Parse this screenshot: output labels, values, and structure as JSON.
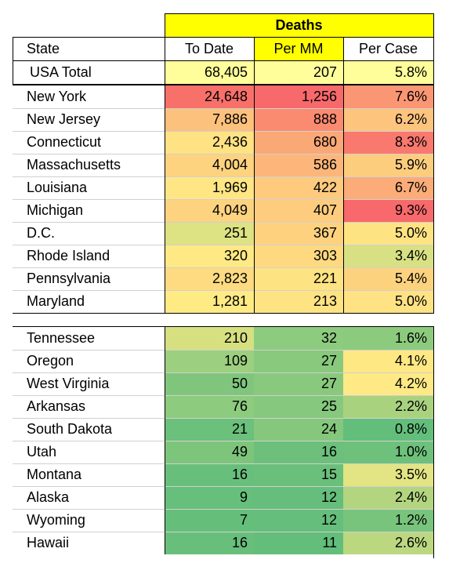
{
  "chart_data": {
    "type": "table",
    "group_header": "Deaths",
    "columns": [
      "State",
      "To Date",
      "Per MM",
      "Per Case"
    ],
    "total": {
      "state": "USA Total",
      "to_date": "68,405",
      "per_mm": "207",
      "per_case": "5.8%",
      "colors": [
        "#fffe9a",
        "#fffe9a",
        "#fffe9a"
      ]
    },
    "top_rows": [
      {
        "state": "New York",
        "to_date": "24,648",
        "per_mm": "1,256",
        "per_case": "7.6%",
        "colors": [
          "#f8706a",
          "#f8696b",
          "#fb9674"
        ]
      },
      {
        "state": "New Jersey",
        "to_date": "7,886",
        "per_mm": "888",
        "per_case": "6.2%",
        "colors": [
          "#fcc17c",
          "#fa8b71",
          "#fdc47d"
        ]
      },
      {
        "state": "Connecticut",
        "to_date": "2,436",
        "per_mm": "680",
        "per_case": "8.3%",
        "colors": [
          "#fee283",
          "#fba877",
          "#f9796e"
        ]
      },
      {
        "state": "Massachusetts",
        "to_date": "4,004",
        "per_mm": "586",
        "per_case": "5.9%",
        "colors": [
          "#fdd380",
          "#fcb67a",
          "#fdcd7e"
        ]
      },
      {
        "state": "Louisiana",
        "to_date": "1,969",
        "per_mm": "422",
        "per_case": "6.7%",
        "colors": [
          "#ffe684",
          "#fdca7e",
          "#fbac78"
        ]
      },
      {
        "state": "Michigan",
        "to_date": "4,049",
        "per_mm": "407",
        "per_case": "9.3%",
        "colors": [
          "#fdd380",
          "#fdcc7e",
          "#f8696b"
        ]
      },
      {
        "state": "D.C.",
        "to_date": "251",
        "per_mm": "367",
        "per_case": "5.0%",
        "colors": [
          "#dde283",
          "#fed17f",
          "#fee383"
        ]
      },
      {
        "state": "Rhode Island",
        "to_date": "320",
        "per_mm": "303",
        "per_case": "3.4%",
        "colors": [
          "#fee984",
          "#fed980",
          "#d7e082"
        ]
      },
      {
        "state": "Pennsylvania",
        "to_date": "2,823",
        "per_mm": "221",
        "per_case": "5.4%",
        "colors": [
          "#fedb81",
          "#fee383",
          "#fdd27f"
        ]
      },
      {
        "state": "Maryland",
        "to_date": "1,281",
        "per_mm": "213",
        "per_case": "5.0%",
        "colors": [
          "#feeb84",
          "#fee383",
          "#fee283"
        ]
      }
    ],
    "bottom_rows": [
      {
        "state": "Tennessee",
        "to_date": "210",
        "per_mm": "32",
        "per_case": "1.6%",
        "colors": [
          "#d6e081",
          "#8dcb7e",
          "#8ccb7e"
        ]
      },
      {
        "state": "Oregon",
        "to_date": "109",
        "per_mm": "27",
        "per_case": "4.1%",
        "colors": [
          "#9ccf7f",
          "#89c97d",
          "#fee884"
        ]
      },
      {
        "state": "West Virginia",
        "to_date": "50",
        "per_mm": "27",
        "per_case": "4.2%",
        "colors": [
          "#7fc67c",
          "#89c97d",
          "#fee984"
        ]
      },
      {
        "state": "Arkansas",
        "to_date": "76",
        "per_mm": "25",
        "per_case": "2.2%",
        "colors": [
          "#8dcb7e",
          "#86c87d",
          "#a9d27f"
        ]
      },
      {
        "state": "South Dakota",
        "to_date": "21",
        "per_mm": "24",
        "per_case": "0.8%",
        "colors": [
          "#6bc07b",
          "#85c87d",
          "#63be7b"
        ]
      },
      {
        "state": "Utah",
        "to_date": "49",
        "per_mm": "16",
        "per_case": "1.0%",
        "colors": [
          "#7ec57c",
          "#6cc07b",
          "#6ec17b"
        ]
      },
      {
        "state": "Montana",
        "to_date": "16",
        "per_mm": "15",
        "per_case": "3.5%",
        "colors": [
          "#68bf7b",
          "#6abf7b",
          "#e3e483"
        ]
      },
      {
        "state": "Alaska",
        "to_date": "9",
        "per_mm": "12",
        "per_case": "2.4%",
        "colors": [
          "#66bf7b",
          "#65be7b",
          "#b3d580"
        ]
      },
      {
        "state": "Wyoming",
        "to_date": "7",
        "per_mm": "12",
        "per_case": "1.2%",
        "colors": [
          "#65bf7b",
          "#65be7b",
          "#78c47c"
        ]
      },
      {
        "state": "Hawaii",
        "to_date": "16",
        "per_mm": "11",
        "per_case": "2.6%",
        "colors": [
          "#68bf7b",
          "#63be7b",
          "#bbd780"
        ]
      }
    ],
    "header_highlight": "#ffff00"
  }
}
